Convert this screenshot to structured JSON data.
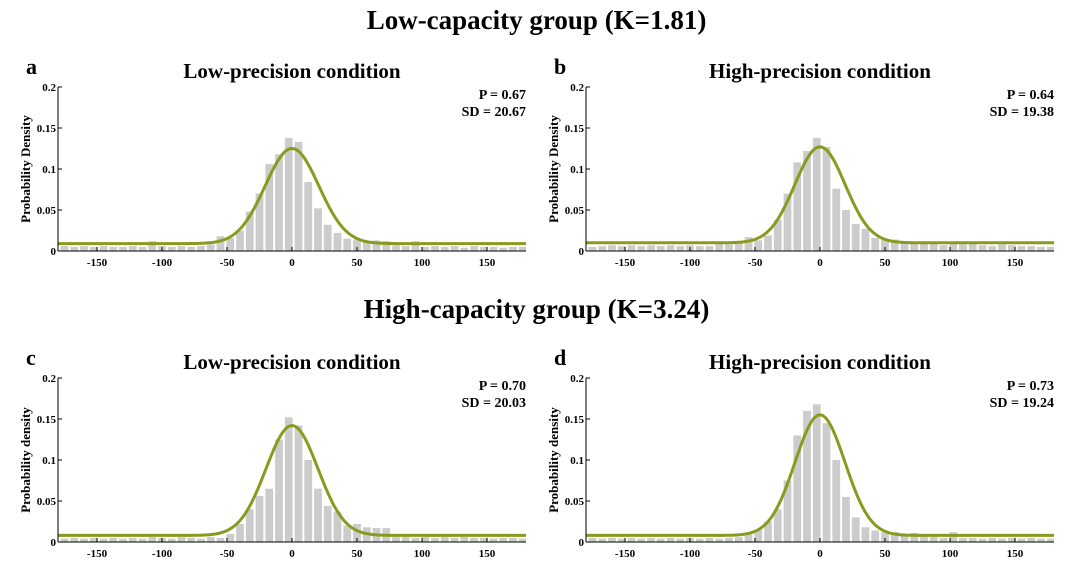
{
  "groups": [
    {
      "title": "Low-capacity group (K=1.81)"
    },
    {
      "title": "High-capacity group (K=3.24)"
    }
  ],
  "colors": {
    "bars": "#cccccc",
    "fit_curve": "#8a9a1e",
    "axis": "#000000"
  },
  "chart_data": [
    {
      "type": "bar",
      "panel_letter": "a",
      "title": "Low-precision condition",
      "ylabel": "Probability Density",
      "xlabel": "",
      "xlim": [
        -180,
        180
      ],
      "ylim": [
        0,
        0.2
      ],
      "xticks": [
        -150,
        -100,
        -50,
        0,
        50,
        100,
        150
      ],
      "yticks": [
        0,
        0.05,
        0.1,
        0.15,
        0.2
      ],
      "ytick_labels": [
        "0",
        "0.05",
        "0.1",
        "0.15",
        "0.2"
      ],
      "stats": [
        "P = 0.67",
        "SD = 20.67"
      ],
      "bin_width": 7.5,
      "bin_centers": [
        -175,
        -167.5,
        -160,
        -152.5,
        -145,
        -137.5,
        -130,
        -122.5,
        -115,
        -107.5,
        -100,
        -92.5,
        -85,
        -77.5,
        -70,
        -62.5,
        -55,
        -47.5,
        -40,
        -32.5,
        -25,
        -17.5,
        -10,
        -2.5,
        5,
        12.5,
        20,
        27.5,
        35,
        42.5,
        50,
        57.5,
        65,
        72.5,
        80,
        87.5,
        95,
        102.5,
        110,
        117.5,
        125,
        132.5,
        140,
        147.5,
        155,
        162.5,
        170,
        177.5
      ],
      "values": [
        0.006,
        0.005,
        0.006,
        0.005,
        0.006,
        0.005,
        0.005,
        0.006,
        0.005,
        0.012,
        0.006,
        0.005,
        0.006,
        0.005,
        0.006,
        0.008,
        0.018,
        0.016,
        0.025,
        0.048,
        0.07,
        0.106,
        0.118,
        0.138,
        0.133,
        0.084,
        0.052,
        0.032,
        0.022,
        0.015,
        0.014,
        0.012,
        0.013,
        0.012,
        0.007,
        0.006,
        0.012,
        0.005,
        0.006,
        0.005,
        0.006,
        0.004,
        0.006,
        0.005,
        0.005,
        0.004,
        0.005,
        0.005
      ],
      "fit": {
        "model": "gaussian + uniform",
        "peak": 0.125,
        "baseline": 0.009,
        "sd": 20.67
      }
    },
    {
      "type": "bar",
      "panel_letter": "b",
      "title": "High-precision condition",
      "ylabel": "Probability Density",
      "xlabel": "",
      "xlim": [
        -180,
        180
      ],
      "ylim": [
        0,
        0.2
      ],
      "xticks": [
        -150,
        -100,
        -50,
        0,
        50,
        100,
        150
      ],
      "yticks": [
        0,
        0.05,
        0.1,
        0.15,
        0.2
      ],
      "ytick_labels": [
        "0",
        "0.05",
        "0.1",
        "0.15",
        "0.2"
      ],
      "stats": [
        "P = 0.64",
        "SD = 19.38"
      ],
      "bin_width": 7.5,
      "bin_centers": [
        -175,
        -167.5,
        -160,
        -152.5,
        -145,
        -137.5,
        -130,
        -122.5,
        -115,
        -107.5,
        -100,
        -92.5,
        -85,
        -77.5,
        -70,
        -62.5,
        -55,
        -47.5,
        -40,
        -32.5,
        -25,
        -17.5,
        -10,
        -2.5,
        5,
        12.5,
        20,
        27.5,
        35,
        42.5,
        50,
        57.5,
        65,
        72.5,
        80,
        87.5,
        95,
        102.5,
        110,
        117.5,
        125,
        132.5,
        140,
        147.5,
        155,
        162.5,
        170,
        177.5
      ],
      "values": [
        0.005,
        0.006,
        0.007,
        0.006,
        0.007,
        0.006,
        0.007,
        0.006,
        0.007,
        0.006,
        0.007,
        0.006,
        0.006,
        0.009,
        0.008,
        0.01,
        0.017,
        0.013,
        0.019,
        0.038,
        0.07,
        0.108,
        0.122,
        0.138,
        0.127,
        0.076,
        0.05,
        0.033,
        0.027,
        0.016,
        0.015,
        0.014,
        0.012,
        0.01,
        0.009,
        0.009,
        0.007,
        0.009,
        0.008,
        0.009,
        0.007,
        0.006,
        0.008,
        0.007,
        0.006,
        0.006,
        0.005,
        0.005
      ],
      "fit": {
        "model": "gaussian + uniform",
        "peak": 0.127,
        "baseline": 0.01,
        "sd": 19.38
      }
    },
    {
      "type": "bar",
      "panel_letter": "c",
      "title": "Low-precision condition",
      "ylabel": "Probability density",
      "xlabel": "",
      "xlim": [
        -180,
        180
      ],
      "ylim": [
        0,
        0.2
      ],
      "xticks": [
        -150,
        -100,
        -50,
        0,
        50,
        100,
        150
      ],
      "yticks": [
        0,
        0.05,
        0.1,
        0.15,
        0.2
      ],
      "ytick_labels": [
        "0",
        "0.05",
        "0.1",
        "0.15",
        "0.2"
      ],
      "stats": [
        "P = 0.70",
        "SD = 20.03"
      ],
      "bin_width": 7.5,
      "bin_centers": [
        -175,
        -167.5,
        -160,
        -152.5,
        -145,
        -137.5,
        -130,
        -122.5,
        -115,
        -107.5,
        -100,
        -92.5,
        -85,
        -77.5,
        -70,
        -62.5,
        -55,
        -47.5,
        -40,
        -32.5,
        -25,
        -17.5,
        -10,
        -2.5,
        5,
        12.5,
        20,
        27.5,
        35,
        42.5,
        50,
        57.5,
        65,
        72.5,
        80,
        87.5,
        95,
        102.5,
        110,
        117.5,
        125,
        132.5,
        140,
        147.5,
        155,
        162.5,
        170,
        177.5
      ],
      "values": [
        0.004,
        0.005,
        0.004,
        0.005,
        0.004,
        0.005,
        0.004,
        0.005,
        0.004,
        0.006,
        0.005,
        0.004,
        0.006,
        0.005,
        0.004,
        0.006,
        0.005,
        0.01,
        0.022,
        0.04,
        0.056,
        0.065,
        0.125,
        0.152,
        0.142,
        0.1,
        0.065,
        0.044,
        0.037,
        0.02,
        0.022,
        0.018,
        0.017,
        0.017,
        0.006,
        0.006,
        0.005,
        0.006,
        0.005,
        0.006,
        0.005,
        0.006,
        0.005,
        0.005,
        0.004,
        0.005,
        0.005,
        0.004
      ],
      "fit": {
        "model": "gaussian + uniform",
        "peak": 0.142,
        "baseline": 0.008,
        "sd": 20.03
      }
    },
    {
      "type": "bar",
      "panel_letter": "d",
      "title": "High-precision condition",
      "ylabel": "Probability density",
      "xlabel": "",
      "xlim": [
        -180,
        180
      ],
      "ylim": [
        0,
        0.2
      ],
      "xticks": [
        -150,
        -100,
        -50,
        0,
        50,
        100,
        150
      ],
      "yticks": [
        0,
        0.05,
        0.1,
        0.15,
        0.2
      ],
      "ytick_labels": [
        "0",
        "0.05",
        "0.1",
        "0.15",
        "0.2"
      ],
      "stats": [
        "P = 0.73",
        "SD = 19.24"
      ],
      "bin_width": 7.5,
      "bin_centers": [
        -175,
        -167.5,
        -160,
        -152.5,
        -145,
        -137.5,
        -130,
        -122.5,
        -115,
        -107.5,
        -100,
        -92.5,
        -85,
        -77.5,
        -70,
        -62.5,
        -55,
        -47.5,
        -40,
        -32.5,
        -25,
        -17.5,
        -10,
        -2.5,
        5,
        12.5,
        20,
        27.5,
        35,
        42.5,
        50,
        57.5,
        65,
        72.5,
        80,
        87.5,
        95,
        102.5,
        110,
        117.5,
        125,
        132.5,
        140,
        147.5,
        155,
        162.5,
        170,
        177.5
      ],
      "values": [
        0.005,
        0.004,
        0.005,
        0.004,
        0.005,
        0.004,
        0.005,
        0.004,
        0.005,
        0.004,
        0.005,
        0.004,
        0.005,
        0.004,
        0.005,
        0.006,
        0.011,
        0.015,
        0.025,
        0.04,
        0.075,
        0.13,
        0.16,
        0.168,
        0.145,
        0.1,
        0.055,
        0.03,
        0.018,
        0.014,
        0.012,
        0.012,
        0.01,
        0.011,
        0.007,
        0.006,
        0.005,
        0.012,
        0.005,
        0.005,
        0.004,
        0.005,
        0.004,
        0.005,
        0.004,
        0.005,
        0.004,
        0.004
      ],
      "fit": {
        "model": "gaussian + uniform",
        "peak": 0.155,
        "baseline": 0.008,
        "sd": 19.24
      }
    }
  ]
}
